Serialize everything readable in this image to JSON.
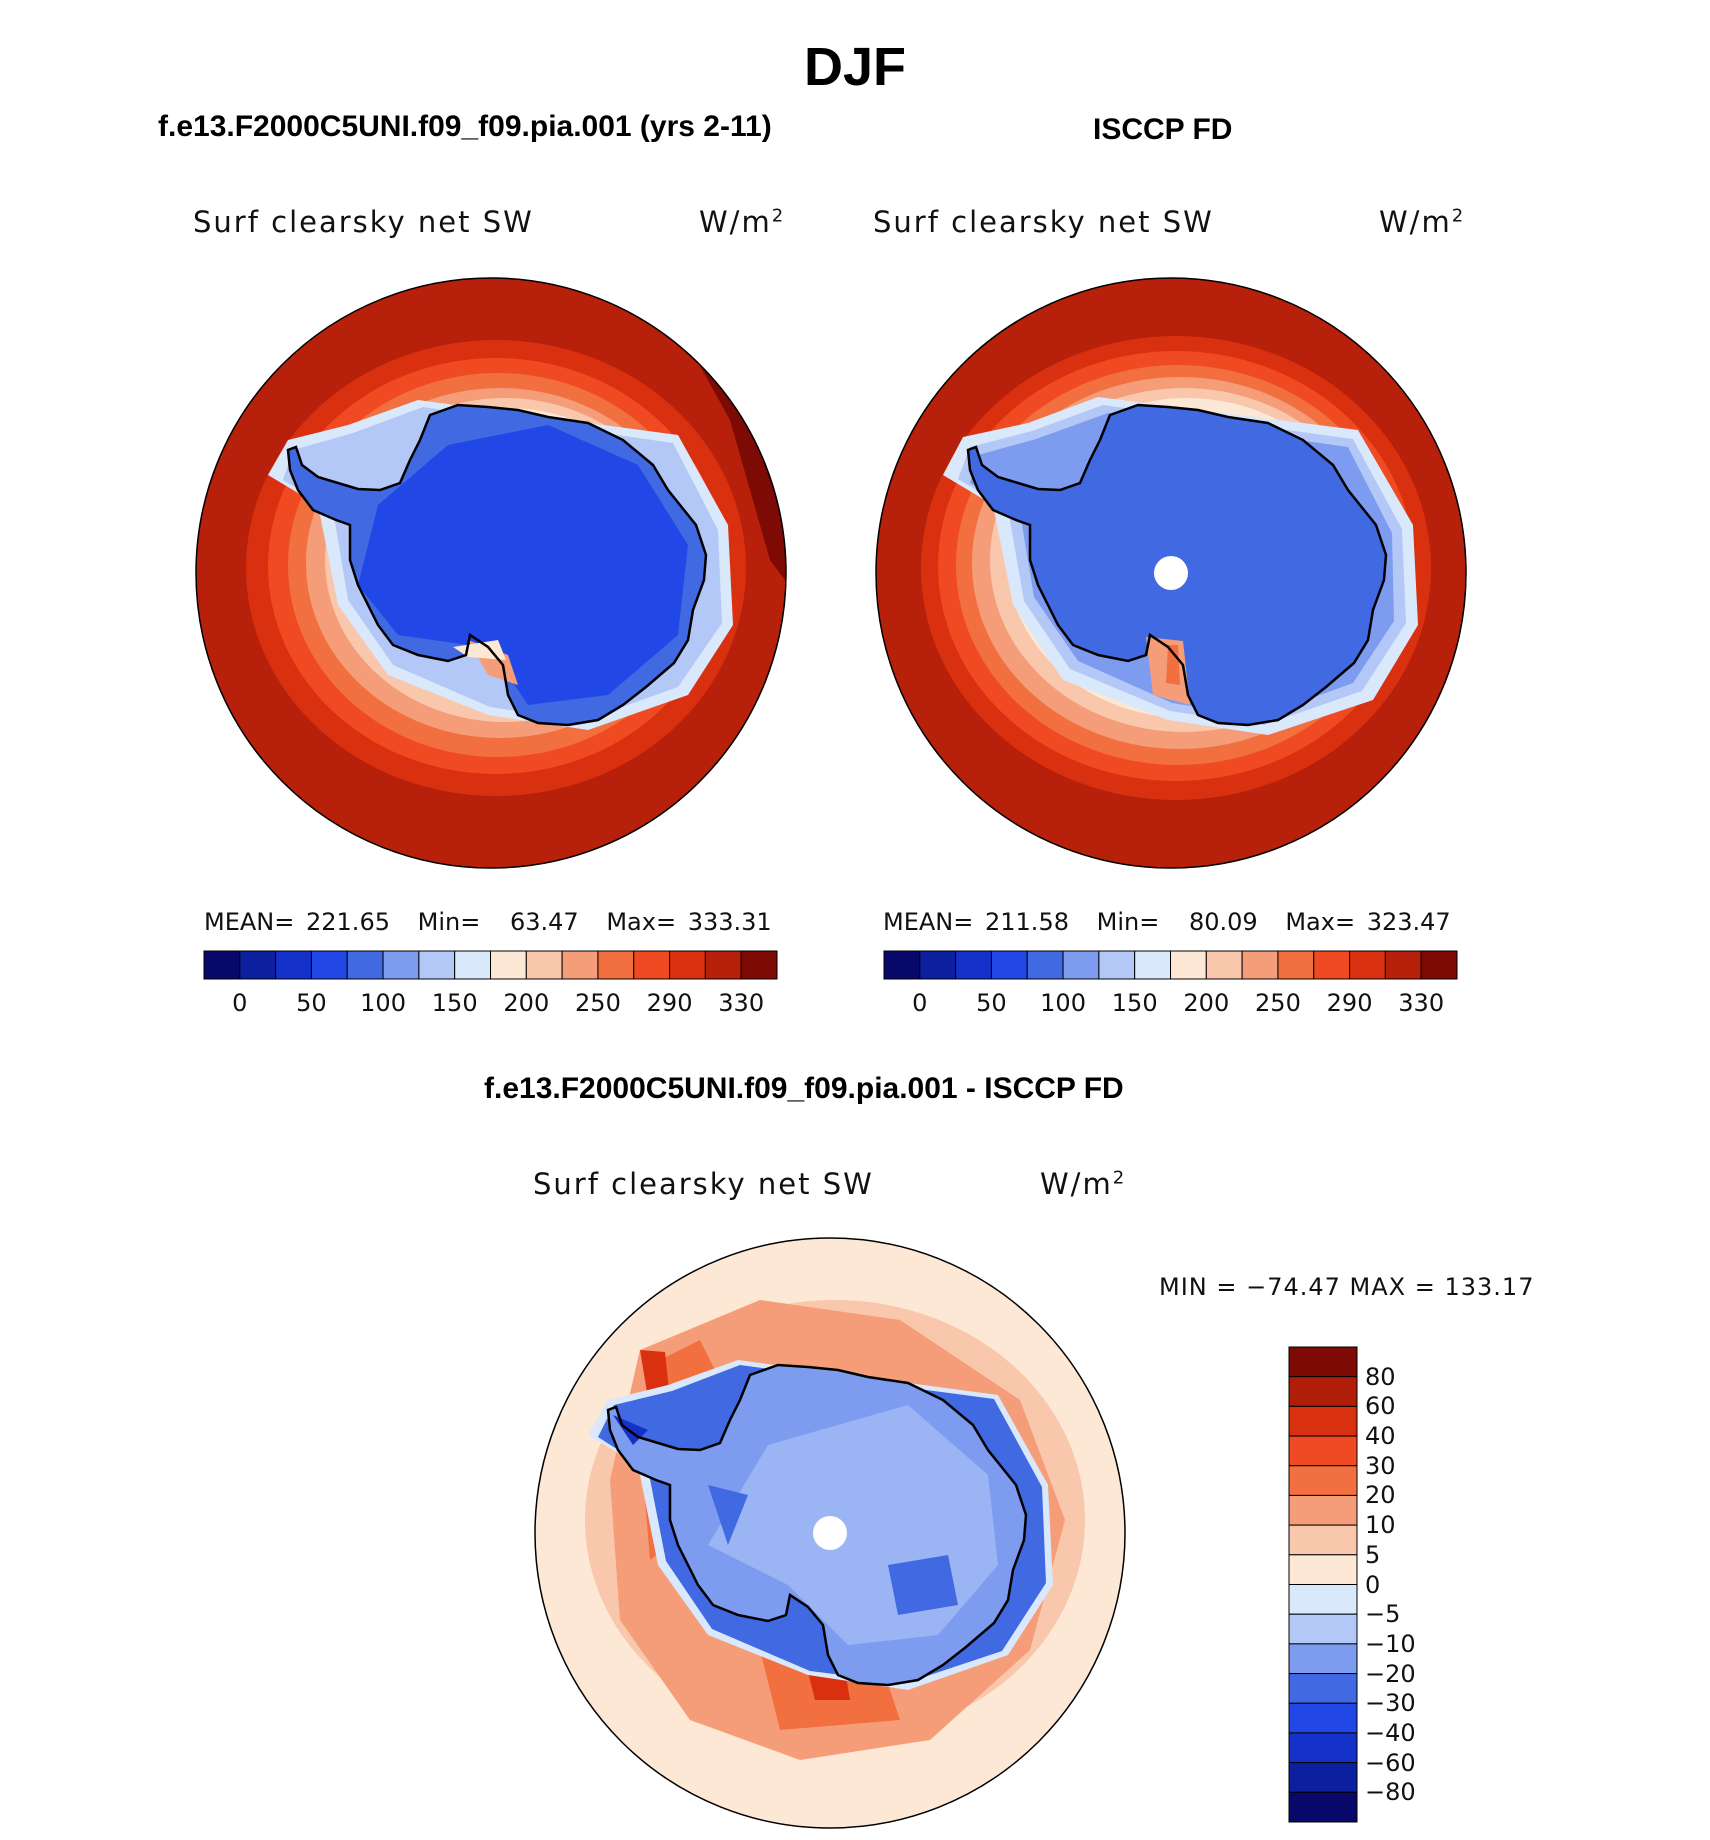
{
  "figure": {
    "title": "DJF"
  },
  "panels": [
    {
      "header": "f.e13.F2000C5UNI.f09_f09.pia.001 (yrs 2-11)",
      "variable": "Surf clearsky net SW",
      "units": "W/m",
      "units_sup": "2",
      "stats": {
        "mean_label": "MEAN=",
        "mean": "221.65",
        "min_label": "Min=",
        "min": "63.47",
        "max_label": "Max=",
        "max": "333.31"
      }
    },
    {
      "header": "ISCCP FD",
      "variable": "Surf clearsky net SW",
      "units": "W/m",
      "units_sup": "2",
      "stats": {
        "mean_label": "MEAN=",
        "mean": "211.58",
        "min_label": "Min=",
        "min": "80.09",
        "max_label": "Max=",
        "max": "323.47"
      }
    },
    {
      "header": "f.e13.F2000C5UNI.f09_f09.pia.001 - ISCCP FD",
      "variable": "Surf clearsky net SW",
      "units": "W/m",
      "units_sup": "2",
      "stats_line": "MIN = −74.47 MAX = 133.17"
    }
  ],
  "colorbar_abs": {
    "labels": [
      "0",
      "50",
      "100",
      "150",
      "200",
      "250",
      "290",
      "330"
    ],
    "colors": [
      "#08086b",
      "#0c1f9e",
      "#1431c9",
      "#2148e6",
      "#4169e1",
      "#7d9cf0",
      "#b4c8f7",
      "#dae8fb",
      "#fde7d5",
      "#f8c7ac",
      "#f59d78",
      "#f2703f",
      "#f04a22",
      "#d9300f",
      "#b7200a",
      "#7d0a05"
    ]
  },
  "colorbar_diff": {
    "labels": [
      "80",
      "60",
      "40",
      "30",
      "20",
      "10",
      "5",
      "0",
      "−5",
      "−10",
      "−20",
      "−30",
      "−40",
      "−60",
      "−80"
    ],
    "colors": [
      "#7d0a05",
      "#b01e0a",
      "#d9300f",
      "#f04a22",
      "#f2703f",
      "#f59d78",
      "#f8c7ac",
      "#fde7d5",
      "#dae8fb",
      "#b4c8f7",
      "#7d9cf0",
      "#4169e1",
      "#2148e6",
      "#1431c9",
      "#0c1f9e",
      "#08086b"
    ]
  }
}
